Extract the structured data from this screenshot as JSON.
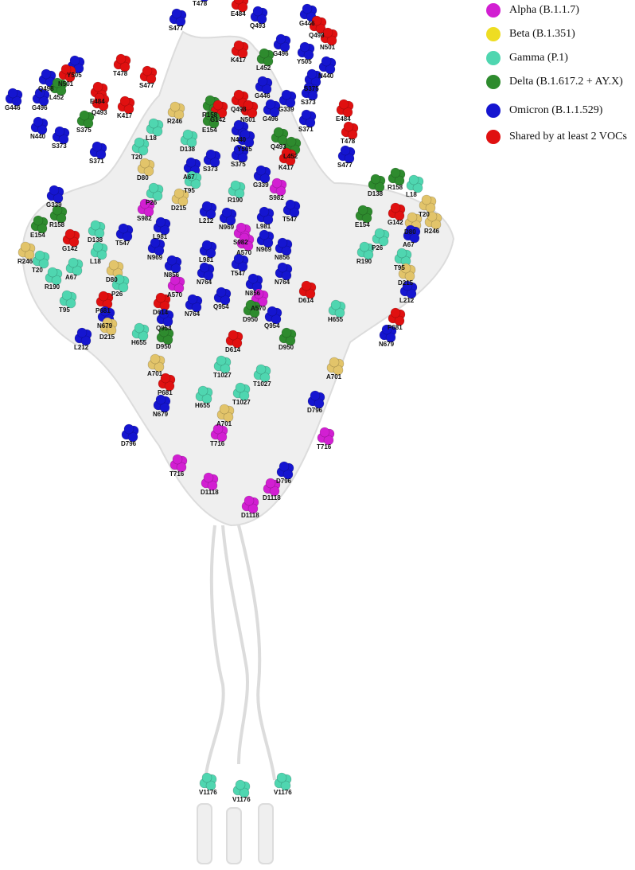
{
  "legend": [
    {
      "label": "Alpha (B.1.1.7)",
      "color": "#d21fd2"
    },
    {
      "label": "Beta (B.1.351)",
      "color": "#eedd22"
    },
    {
      "label": "Gamma (P.1)",
      "color": "#4fd6b0"
    },
    {
      "label": "Delta (B.1.617.2 + AY.X)",
      "color": "#2e8b2e"
    },
    {
      "label": "Omicron (B.1.1.529)",
      "color": "#1515d0"
    },
    {
      "label": "Shared by at least 2 VOCs",
      "color": "#e01010"
    }
  ],
  "residues": [
    {
      "label": "T478",
      "color": "#1515d0"
    },
    {
      "label": "S477",
      "color": "#1515d0"
    },
    {
      "label": "E484",
      "color": "#e01010"
    },
    {
      "label": "Q493",
      "color": "#1515d0"
    },
    {
      "label": "G446",
      "color": "#1515d0"
    },
    {
      "label": "Q498",
      "color": "#e01010"
    },
    {
      "label": "K417",
      "color": "#e01010"
    },
    {
      "label": "G496",
      "color": "#1515d0"
    },
    {
      "label": "N501",
      "color": "#e01010"
    },
    {
      "label": "L452",
      "color": "#2e8b2e"
    },
    {
      "label": "Y505",
      "color": "#1515d0"
    },
    {
      "label": "N440",
      "color": "#1515d0"
    },
    {
      "label": "S375",
      "color": "#1515d0"
    },
    {
      "label": "S373",
      "color": "#1515d0"
    },
    {
      "label": "S371",
      "color": "#1515d0"
    },
    {
      "label": "E484",
      "color": "#e01010"
    },
    {
      "label": "T478",
      "color": "#e01010"
    },
    {
      "label": "S477",
      "color": "#1515d0"
    },
    {
      "label": "Y505",
      "color": "#1515d0"
    },
    {
      "label": "T478",
      "color": "#e01010"
    },
    {
      "label": "N501",
      "color": "#e01010"
    },
    {
      "label": "S477",
      "color": "#e01010"
    },
    {
      "label": "Q498",
      "color": "#1515d0"
    },
    {
      "label": "E484",
      "color": "#e01010"
    },
    {
      "label": "L452",
      "color": "#2e8b2e"
    },
    {
      "label": "G446",
      "color": "#1515d0"
    },
    {
      "label": "G496",
      "color": "#1515d0"
    },
    {
      "label": "Q493",
      "color": "#e01010"
    },
    {
      "label": "K417",
      "color": "#e01010"
    },
    {
      "label": "S375",
      "color": "#2e8b2e"
    },
    {
      "label": "N440",
      "color": "#1515d0"
    },
    {
      "label": "S373",
      "color": "#1515d0"
    },
    {
      "label": "S371",
      "color": "#1515d0"
    },
    {
      "label": "G339",
      "color": "#1515d0"
    },
    {
      "label": "R158",
      "color": "#2e8b2e"
    },
    {
      "label": "R246",
      "color": "#e2c46a"
    },
    {
      "label": "G446",
      "color": "#1515d0"
    },
    {
      "label": "Q498",
      "color": "#e01010"
    },
    {
      "label": "G339",
      "color": "#1515d0"
    },
    {
      "label": "N501",
      "color": "#e01010"
    },
    {
      "label": "G496",
      "color": "#1515d0"
    },
    {
      "label": "G142",
      "color": "#e01010"
    },
    {
      "label": "E154",
      "color": "#2e8b2e"
    },
    {
      "label": "D138",
      "color": "#4fd6b0"
    },
    {
      "label": "L18",
      "color": "#4fd6b0"
    },
    {
      "label": "T20",
      "color": "#4fd6b0"
    },
    {
      "label": "N440",
      "color": "#1515d0"
    },
    {
      "label": "Y505",
      "color": "#1515d0"
    },
    {
      "label": "Q493",
      "color": "#2e8b2e"
    },
    {
      "label": "L452",
      "color": "#2e8b2e"
    },
    {
      "label": "K417",
      "color": "#e01010"
    },
    {
      "label": "D80",
      "color": "#e2c46a"
    },
    {
      "label": "A67",
      "color": "#1515d0"
    },
    {
      "label": "S373",
      "color": "#1515d0"
    },
    {
      "label": "S375",
      "color": "#1515d0"
    },
    {
      "label": "T95",
      "color": "#4fd6b0"
    },
    {
      "label": "R190",
      "color": "#4fd6b0"
    },
    {
      "label": "G339",
      "color": "#1515d0"
    },
    {
      "label": "S982",
      "color": "#d21fd2"
    },
    {
      "label": "P26",
      "color": "#4fd6b0"
    },
    {
      "label": "D215",
      "color": "#e2c46a"
    },
    {
      "label": "S982",
      "color": "#d21fd2"
    },
    {
      "label": "L212",
      "color": "#1515d0"
    },
    {
      "label": "T547",
      "color": "#1515d0"
    },
    {
      "label": "L981",
      "color": "#1515d0"
    },
    {
      "label": "L981",
      "color": "#1515d0"
    },
    {
      "label": "N969",
      "color": "#1515d0"
    },
    {
      "label": "S982",
      "color": "#d21fd2"
    },
    {
      "label": "N969",
      "color": "#1515d0"
    },
    {
      "label": "L981",
      "color": "#1515d0"
    },
    {
      "label": "N969",
      "color": "#1515d0"
    },
    {
      "label": "N856",
      "color": "#1515d0"
    },
    {
      "label": "T547",
      "color": "#1515d0"
    },
    {
      "label": "A570",
      "color": "#d21fd2"
    },
    {
      "label": "N764",
      "color": "#1515d0"
    },
    {
      "label": "N764",
      "color": "#1515d0"
    },
    {
      "label": "N856",
      "color": "#1515d0"
    },
    {
      "label": "N856",
      "color": "#1515d0"
    },
    {
      "label": "A570",
      "color": "#d21fd2"
    },
    {
      "label": "A570",
      "color": "#d21fd2"
    },
    {
      "label": "D614",
      "color": "#e01010"
    },
    {
      "label": "N764",
      "color": "#1515d0"
    },
    {
      "label": "Q954",
      "color": "#1515d0"
    },
    {
      "label": "D950",
      "color": "#2e8b2e"
    },
    {
      "label": "Q954",
      "color": "#1515d0"
    },
    {
      "label": "D614",
      "color": "#e01010"
    },
    {
      "label": "D950",
      "color": "#2e8b2e"
    },
    {
      "label": "Q954",
      "color": "#1515d0"
    },
    {
      "label": "D950",
      "color": "#2e8b2e"
    },
    {
      "label": "D614",
      "color": "#e01010"
    },
    {
      "label": "H655",
      "color": "#4fd6b0"
    },
    {
      "label": "P681",
      "color": "#e01010"
    },
    {
      "label": "N679",
      "color": "#1515d0"
    },
    {
      "label": "R158",
      "color": "#2e8b2e"
    },
    {
      "label": "E154",
      "color": "#2e8b2e"
    },
    {
      "label": "D138",
      "color": "#4fd6b0"
    },
    {
      "label": "G142",
      "color": "#e01010"
    },
    {
      "label": "R246",
      "color": "#e2c46a"
    },
    {
      "label": "T20",
      "color": "#4fd6b0"
    },
    {
      "label": "L18",
      "color": "#4fd6b0"
    },
    {
      "label": "A67",
      "color": "#4fd6b0"
    },
    {
      "label": "D80",
      "color": "#e2c46a"
    },
    {
      "label": "R190",
      "color": "#4fd6b0"
    },
    {
      "label": "P26",
      "color": "#4fd6b0"
    },
    {
      "label": "T95",
      "color": "#4fd6b0"
    },
    {
      "label": "P681",
      "color": "#e01010"
    },
    {
      "label": "N679",
      "color": "#1515d0"
    },
    {
      "label": "D215",
      "color": "#e2c46a"
    },
    {
      "label": "H655",
      "color": "#4fd6b0"
    },
    {
      "label": "L212",
      "color": "#1515d0"
    },
    {
      "label": "T547",
      "color": "#1515d0"
    },
    {
      "label": "D138",
      "color": "#2e8b2e"
    },
    {
      "label": "R158",
      "color": "#2e8b2e"
    },
    {
      "label": "L18",
      "color": "#4fd6b0"
    },
    {
      "label": "T20",
      "color": "#e2c46a"
    },
    {
      "label": "E154",
      "color": "#2e8b2e"
    },
    {
      "label": "G142",
      "color": "#e01010"
    },
    {
      "label": "D80",
      "color": "#e2c46a"
    },
    {
      "label": "R246",
      "color": "#e2c46a"
    },
    {
      "label": "P26",
      "color": "#4fd6b0"
    },
    {
      "label": "A67",
      "color": "#1515d0"
    },
    {
      "label": "R190",
      "color": "#4fd6b0"
    },
    {
      "label": "T95",
      "color": "#4fd6b0"
    },
    {
      "label": "D215",
      "color": "#e2c46a"
    },
    {
      "label": "L212",
      "color": "#1515d0"
    },
    {
      "label": "A701",
      "color": "#e2c46a"
    },
    {
      "label": "A701",
      "color": "#e2c46a"
    },
    {
      "label": "P681",
      "color": "#e01010"
    },
    {
      "label": "T1027",
      "color": "#4fd6b0"
    },
    {
      "label": "T1027",
      "color": "#4fd6b0"
    },
    {
      "label": "T1027",
      "color": "#4fd6b0"
    },
    {
      "label": "H655",
      "color": "#4fd6b0"
    },
    {
      "label": "N679",
      "color": "#1515d0"
    },
    {
      "label": "D796",
      "color": "#1515d0"
    },
    {
      "label": "A701",
      "color": "#e2c46a"
    },
    {
      "label": "T716",
      "color": "#d21fd2"
    },
    {
      "label": "D796",
      "color": "#1515d0"
    },
    {
      "label": "T716",
      "color": "#d21fd2"
    },
    {
      "label": "D796",
      "color": "#1515d0"
    },
    {
      "label": "T716",
      "color": "#d21fd2"
    },
    {
      "label": "D1118",
      "color": "#d21fd2"
    },
    {
      "label": "D1118",
      "color": "#d21fd2"
    },
    {
      "label": "D1118",
      "color": "#d21fd2"
    },
    {
      "label": "V1176",
      "color": "#4fd6b0"
    },
    {
      "label": "V1176",
      "color": "#4fd6b0"
    },
    {
      "label": "V1176",
      "color": "#4fd6b0"
    }
  ]
}
